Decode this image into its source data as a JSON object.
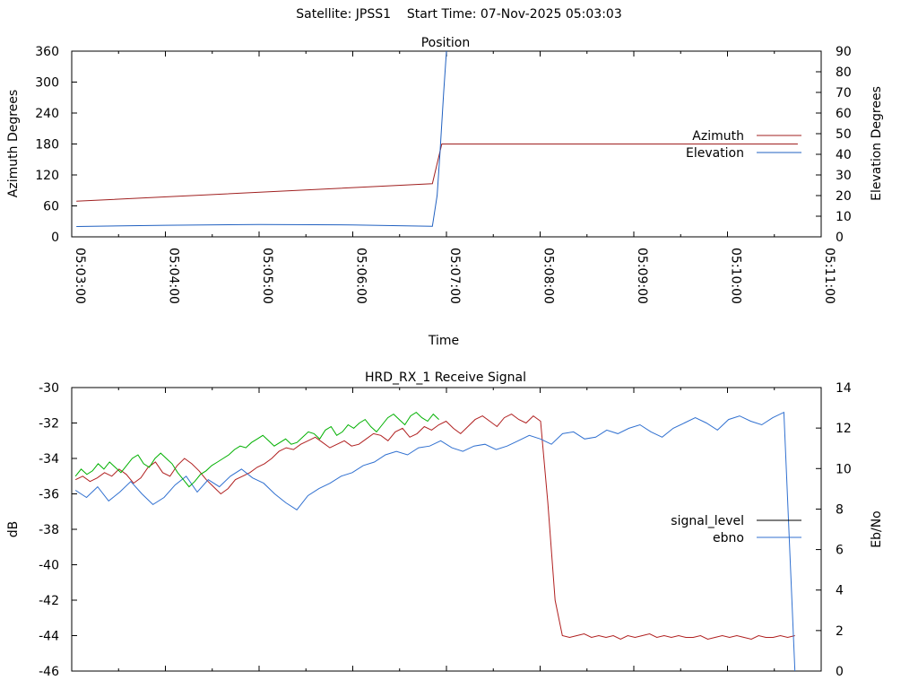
{
  "page": {
    "title": "Satellite: JPSS1    Start Time: 07-Nov-2025 05:03:03"
  },
  "colors": {
    "azimuth": "#a02020",
    "elevation": "#2060c0",
    "signal_level": "#000000",
    "signal_red": "#b02020",
    "ebno": "#3070d0",
    "green_trace": "#00b000"
  },
  "chart_data": [
    {
      "type": "line",
      "title": "Position",
      "xlabel": "Time",
      "ylabel": "Azimuth Degrees",
      "y2label": "Elevation Degrees",
      "xticks": [
        "05:03:00",
        "05:04:00",
        "05:05:00",
        "05:06:00",
        "05:07:00",
        "05:08:00",
        "05:09:00",
        "05:10:00",
        "05:11:00"
      ],
      "xlim_minutes": [
        0,
        8
      ],
      "ylim": [
        0,
        360
      ],
      "y2lim": [
        0,
        90
      ],
      "yticks": [
        0,
        60,
        120,
        180,
        240,
        300,
        360
      ],
      "y2ticks": [
        0,
        10,
        20,
        30,
        40,
        50,
        60,
        70,
        80,
        90
      ],
      "legend_position": "right",
      "series": [
        {
          "name": "Azimuth",
          "axis": "y",
          "color_key": "azimuth",
          "points_minutes": [
            [
              0.05,
              69
            ],
            [
              3.85,
              103
            ],
            [
              3.95,
              180
            ],
            [
              7.75,
              180
            ]
          ]
        },
        {
          "name": "Elevation",
          "axis": "y2",
          "color_key": "elevation",
          "points_minutes": [
            [
              0.05,
              5.0
            ],
            [
              1.0,
              5.6
            ],
            [
              2.0,
              6.0
            ],
            [
              3.0,
              5.8
            ],
            [
              3.85,
              5.1
            ],
            [
              3.9,
              20
            ],
            [
              3.93,
              40
            ],
            [
              3.97,
              70
            ],
            [
              4.0,
              90
            ]
          ]
        }
      ]
    },
    {
      "type": "line",
      "title": "HRD_RX_1 Receive Signal",
      "xlabel": "",
      "ylabel": "dB",
      "y2label": "Eb/No",
      "ylim": [
        -46,
        -30
      ],
      "y2lim": [
        0,
        14
      ],
      "yticks": [
        -46,
        -44,
        -42,
        -40,
        -38,
        -36,
        -34,
        -32,
        -30
      ],
      "y2ticks": [
        0,
        2,
        4,
        6,
        8,
        10,
        12,
        14
      ],
      "legend_position": "right",
      "series": [
        {
          "name": "signal_level",
          "axis": "y",
          "color_key": "signal_red",
          "x_fraction_range": [
            0.005,
            0.965
          ],
          "values": [
            -35.2,
            -35.0,
            -35.3,
            -35.1,
            -34.8,
            -35.0,
            -34.6,
            -34.9,
            -35.4,
            -35.1,
            -34.5,
            -34.2,
            -34.8,
            -35.0,
            -34.4,
            -34.0,
            -34.3,
            -34.7,
            -35.2,
            -35.6,
            -36.0,
            -35.7,
            -35.2,
            -35.0,
            -34.8,
            -34.5,
            -34.3,
            -34.0,
            -33.6,
            -33.4,
            -33.5,
            -33.2,
            -33.0,
            -32.8,
            -33.1,
            -33.4,
            -33.2,
            -33.0,
            -33.3,
            -33.2,
            -32.9,
            -32.6,
            -32.7,
            -33.0,
            -32.5,
            -32.3,
            -32.8,
            -32.6,
            -32.2,
            -32.4,
            -32.1,
            -31.9,
            -32.3,
            -32.6,
            -32.2,
            -31.8,
            -31.6,
            -31.9,
            -32.2,
            -31.7,
            -31.5,
            -31.8,
            -32.0,
            -31.6,
            -31.9,
            -36.5,
            -42.0,
            -44.0,
            -44.1,
            -44.0,
            -43.9,
            -44.1,
            -44.0,
            -44.1,
            -44.0,
            -44.2,
            -44.0,
            -44.1,
            -44.0,
            -43.9,
            -44.1,
            -44.0,
            -44.1,
            -44.0,
            -44.1,
            -44.1,
            -44.0,
            -44.2,
            -44.1,
            -44.0,
            -44.1,
            -44.0,
            -44.1,
            -44.2,
            -44.0,
            -44.1,
            -44.1,
            -44.0,
            -44.1,
            -44.0
          ]
        },
        {
          "name": "ebno",
          "axis": "y",
          "color_key": "ebno",
          "x_fraction_range": [
            0.005,
            0.965
          ],
          "values": [
            -35.8,
            -36.2,
            -35.6,
            -36.4,
            -35.9,
            -35.3,
            -36.0,
            -36.6,
            -36.2,
            -35.5,
            -35.0,
            -35.9,
            -35.2,
            -35.6,
            -35.0,
            -34.6,
            -35.1,
            -35.4,
            -36.0,
            -36.5,
            -36.9,
            -36.1,
            -35.7,
            -35.4,
            -35.0,
            -34.8,
            -34.4,
            -34.2,
            -33.8,
            -33.6,
            -33.8,
            -33.4,
            -33.3,
            -33.0,
            -33.4,
            -33.6,
            -33.3,
            -33.2,
            -33.5,
            -33.3,
            -33.0,
            -32.7,
            -32.9,
            -33.2,
            -32.6,
            -32.5,
            -32.9,
            -32.8,
            -32.4,
            -32.6,
            -32.3,
            -32.1,
            -32.5,
            -32.8,
            -32.3,
            -32.0,
            -31.7,
            -32.0,
            -32.4,
            -31.8,
            -31.6,
            -31.9,
            -32.1,
            -31.7,
            -31.4,
            -46.0
          ]
        },
        {
          "name": "",
          "axis": "y",
          "color_key": "green_trace",
          "x_fraction_range": [
            0.005,
            0.49
          ],
          "values": [
            -35.0,
            -34.6,
            -34.9,
            -34.7,
            -34.3,
            -34.6,
            -34.2,
            -34.5,
            -34.8,
            -34.4,
            -34.0,
            -33.8,
            -34.3,
            -34.5,
            -34.0,
            -33.7,
            -34.0,
            -34.3,
            -34.8,
            -35.2,
            -35.6,
            -35.3,
            -34.9,
            -34.7,
            -34.4,
            -34.2,
            -34.0,
            -33.8,
            -33.5,
            -33.3,
            -33.4,
            -33.1,
            -32.9,
            -32.7,
            -33.0,
            -33.3,
            -33.1,
            -32.9,
            -33.2,
            -33.1,
            -32.8,
            -32.5,
            -32.6,
            -32.9,
            -32.4,
            -32.2,
            -32.7,
            -32.5,
            -32.1,
            -32.3,
            -32.0,
            -31.8,
            -32.2,
            -32.5,
            -32.1,
            -31.7,
            -31.5,
            -31.8,
            -32.1,
            -31.6,
            -31.4,
            -31.7,
            -31.9,
            -31.5,
            -31.8
          ]
        }
      ]
    }
  ]
}
